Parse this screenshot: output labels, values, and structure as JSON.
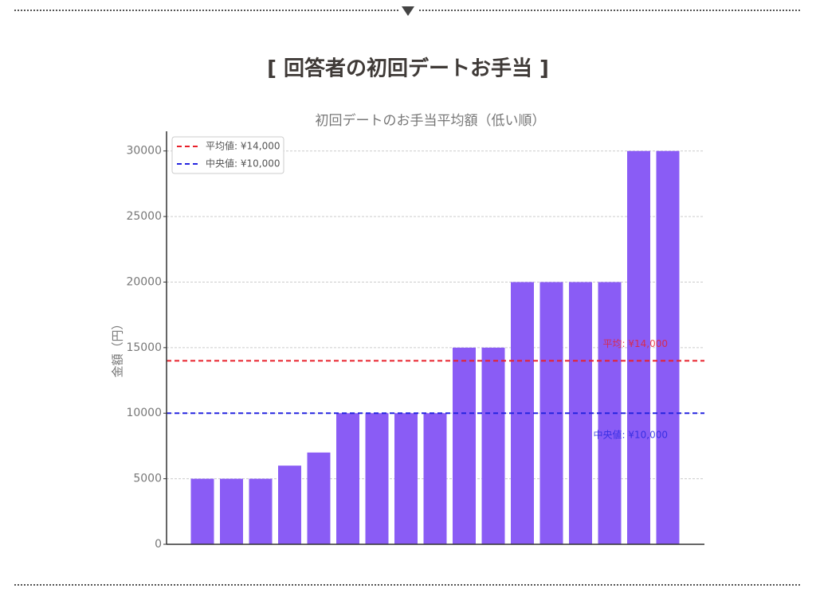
{
  "page": {
    "heading": "[ 回答者の初回デートお手当 ]"
  },
  "chart_data": {
    "type": "bar",
    "title": "初回デートのお手当平均額（低い順）",
    "y_label": "金額（円）",
    "categories": [
      null,
      null,
      null,
      null,
      null,
      null,
      null,
      null,
      null,
      null,
      null,
      null,
      null,
      null,
      null,
      null,
      null
    ],
    "values": [
      5000,
      5000,
      5000,
      6000,
      7000,
      10000,
      10000,
      10000,
      10000,
      15000,
      15000,
      20000,
      20000,
      20000,
      20000,
      30000,
      30000
    ],
    "color": "#8a5cf5",
    "ylim": [
      0,
      31500
    ],
    "yticks": [
      0,
      5000,
      10000,
      15000,
      20000,
      25000,
      30000
    ],
    "grid": true,
    "legend": "upper left",
    "reference_lines": [
      {
        "name": "平均値: ¥14,000",
        "value": 14000,
        "color": "#e8202a",
        "label": "平均: ¥14,000"
      },
      {
        "name": "中央値: ¥10,000",
        "value": 10000,
        "color": "#2424e0",
        "label": "中央値: ¥10,000"
      }
    ]
  }
}
